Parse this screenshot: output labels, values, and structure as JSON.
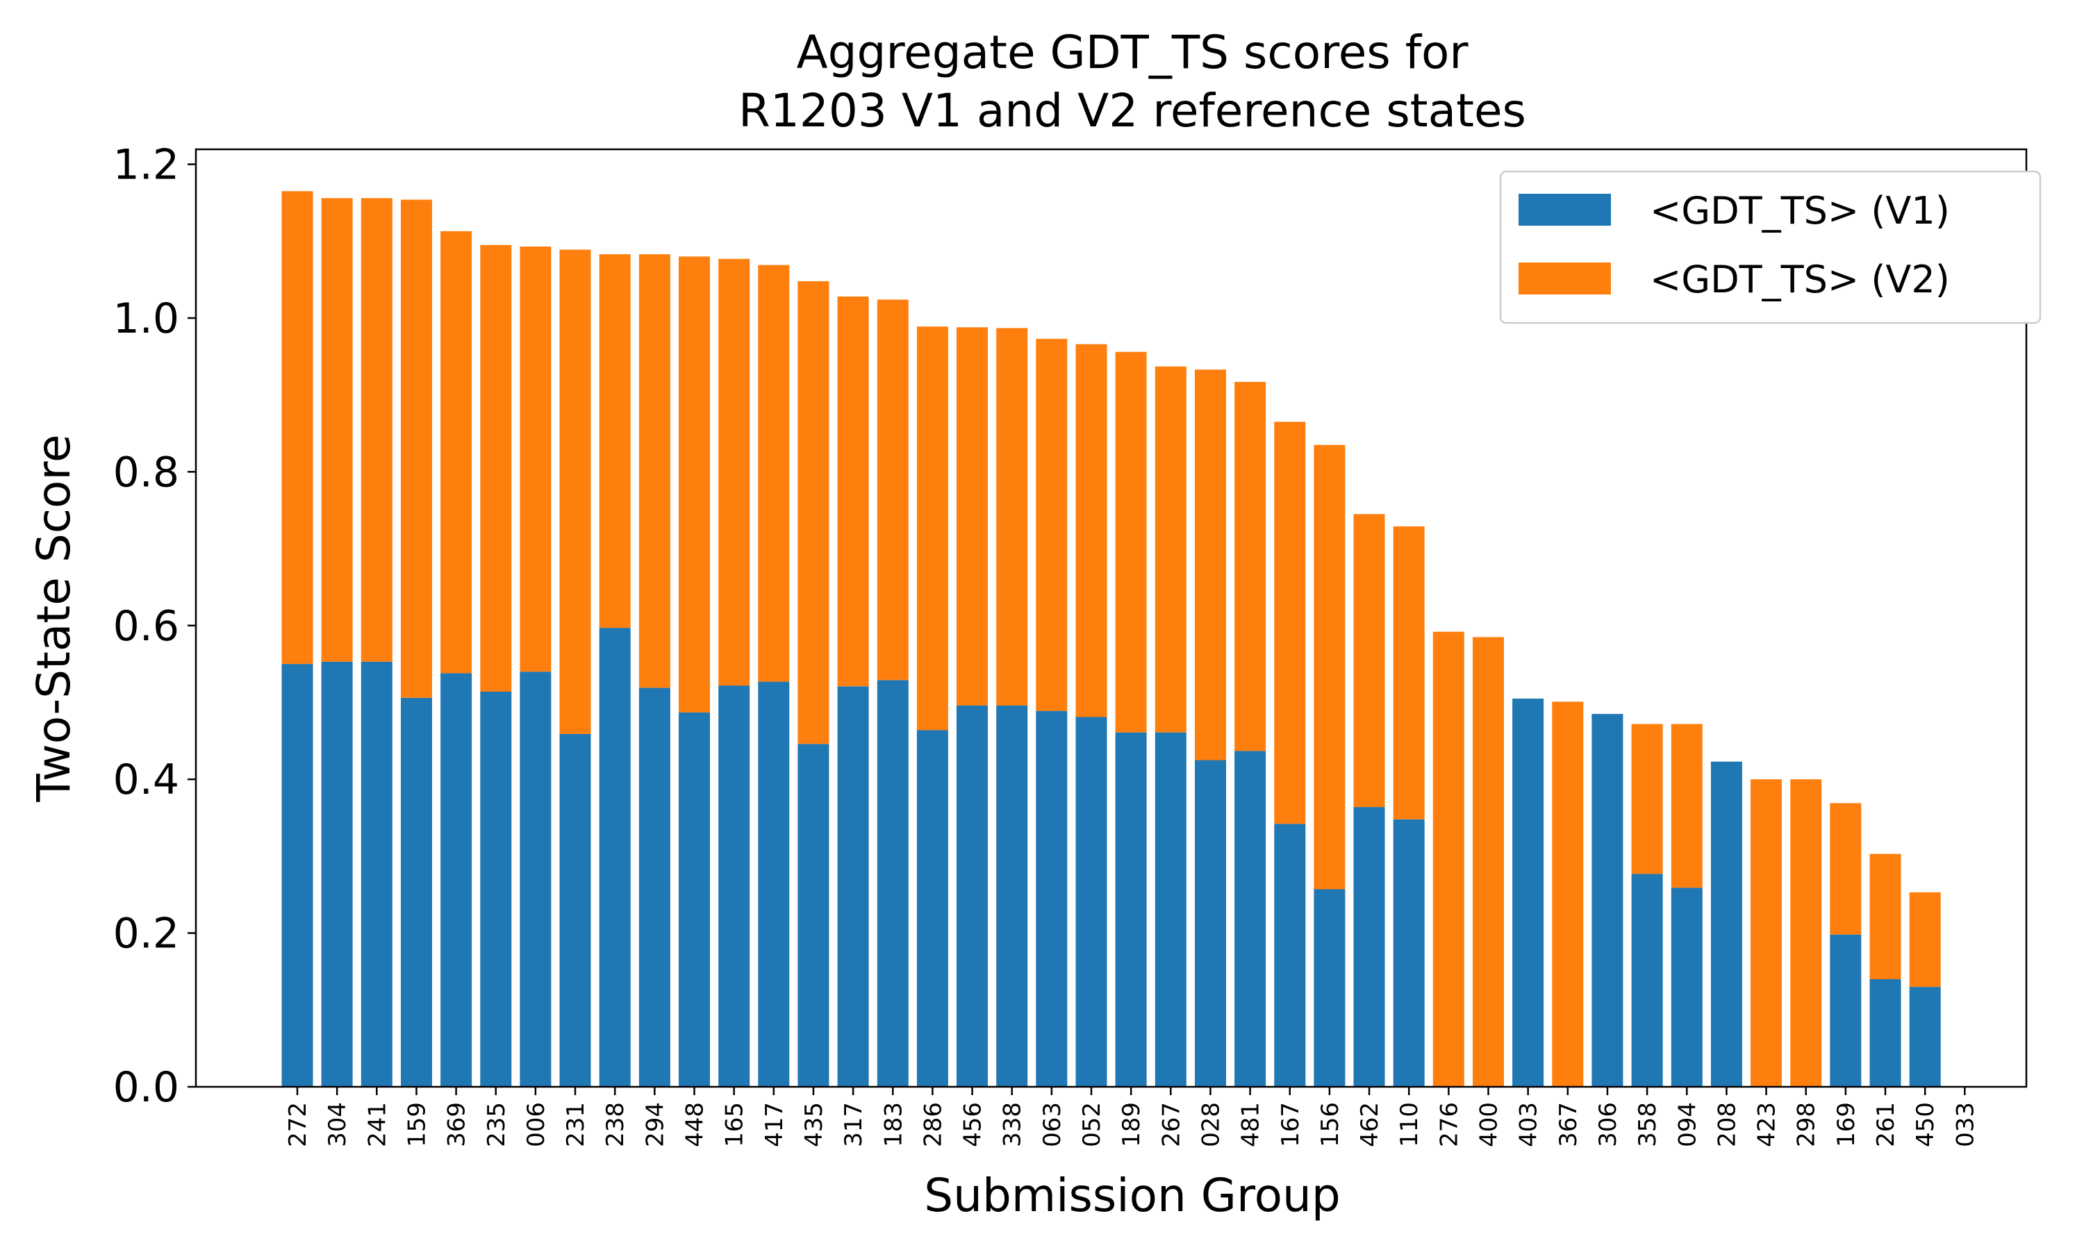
{
  "colors": {
    "v1": "#1f77b4",
    "v2": "#ff7f0e"
  },
  "chart_data": {
    "type": "bar",
    "stacked": true,
    "title_lines": [
      "Aggregate GDT_TS scores for",
      "R1203 V1 and V2 reference states"
    ],
    "xlabel": "Submission Group",
    "ylabel": "Two-State Score",
    "ylim": [
      0,
      1.22
    ],
    "yticks": [
      "0.0",
      "0.2",
      "0.4",
      "0.6",
      "0.8",
      "1.0",
      "1.2"
    ],
    "grid": false,
    "legend_position": "top-right",
    "categories": [
      "272",
      "304",
      "241",
      "159",
      "369",
      "235",
      "006",
      "231",
      "238",
      "294",
      "448",
      "165",
      "417",
      "435",
      "317",
      "183",
      "286",
      "456",
      "338",
      "063",
      "052",
      "189",
      "267",
      "028",
      "481",
      "167",
      "156",
      "462",
      "110",
      "276",
      "400",
      "403",
      "367",
      "306",
      "358",
      "094",
      "208",
      "423",
      "298",
      "169",
      "261",
      "450",
      "033"
    ],
    "series": [
      {
        "name": "<GDT_TS> (V1)",
        "color": "#1f77b4",
        "values": [
          0.55,
          0.553,
          0.553,
          0.506,
          0.538,
          0.514,
          0.54,
          0.459,
          0.597,
          0.519,
          0.487,
          0.522,
          0.527,
          0.446,
          0.521,
          0.529,
          0.464,
          0.496,
          0.496,
          0.489,
          0.481,
          0.461,
          0.461,
          0.425,
          0.437,
          0.342,
          0.257,
          0.364,
          0.348,
          0.0,
          0.0,
          0.505,
          0.0,
          0.485,
          0.277,
          0.259,
          0.423,
          0.0,
          0.0,
          0.198,
          0.14,
          0.13,
          0.0
        ]
      },
      {
        "name": "<GDT_TS> (V2)",
        "color": "#ff7f0e",
        "values": [
          0.615,
          0.603,
          0.603,
          0.648,
          0.575,
          0.581,
          0.553,
          0.63,
          0.486,
          0.564,
          0.593,
          0.555,
          0.542,
          0.602,
          0.507,
          0.495,
          0.525,
          0.492,
          0.491,
          0.484,
          0.485,
          0.495,
          0.476,
          0.508,
          0.48,
          0.523,
          0.578,
          0.381,
          0.381,
          0.592,
          0.585,
          0.0,
          0.501,
          0.0,
          0.195,
          0.213,
          0.0,
          0.4,
          0.4,
          0.171,
          0.163,
          0.123,
          0.0
        ]
      }
    ]
  }
}
